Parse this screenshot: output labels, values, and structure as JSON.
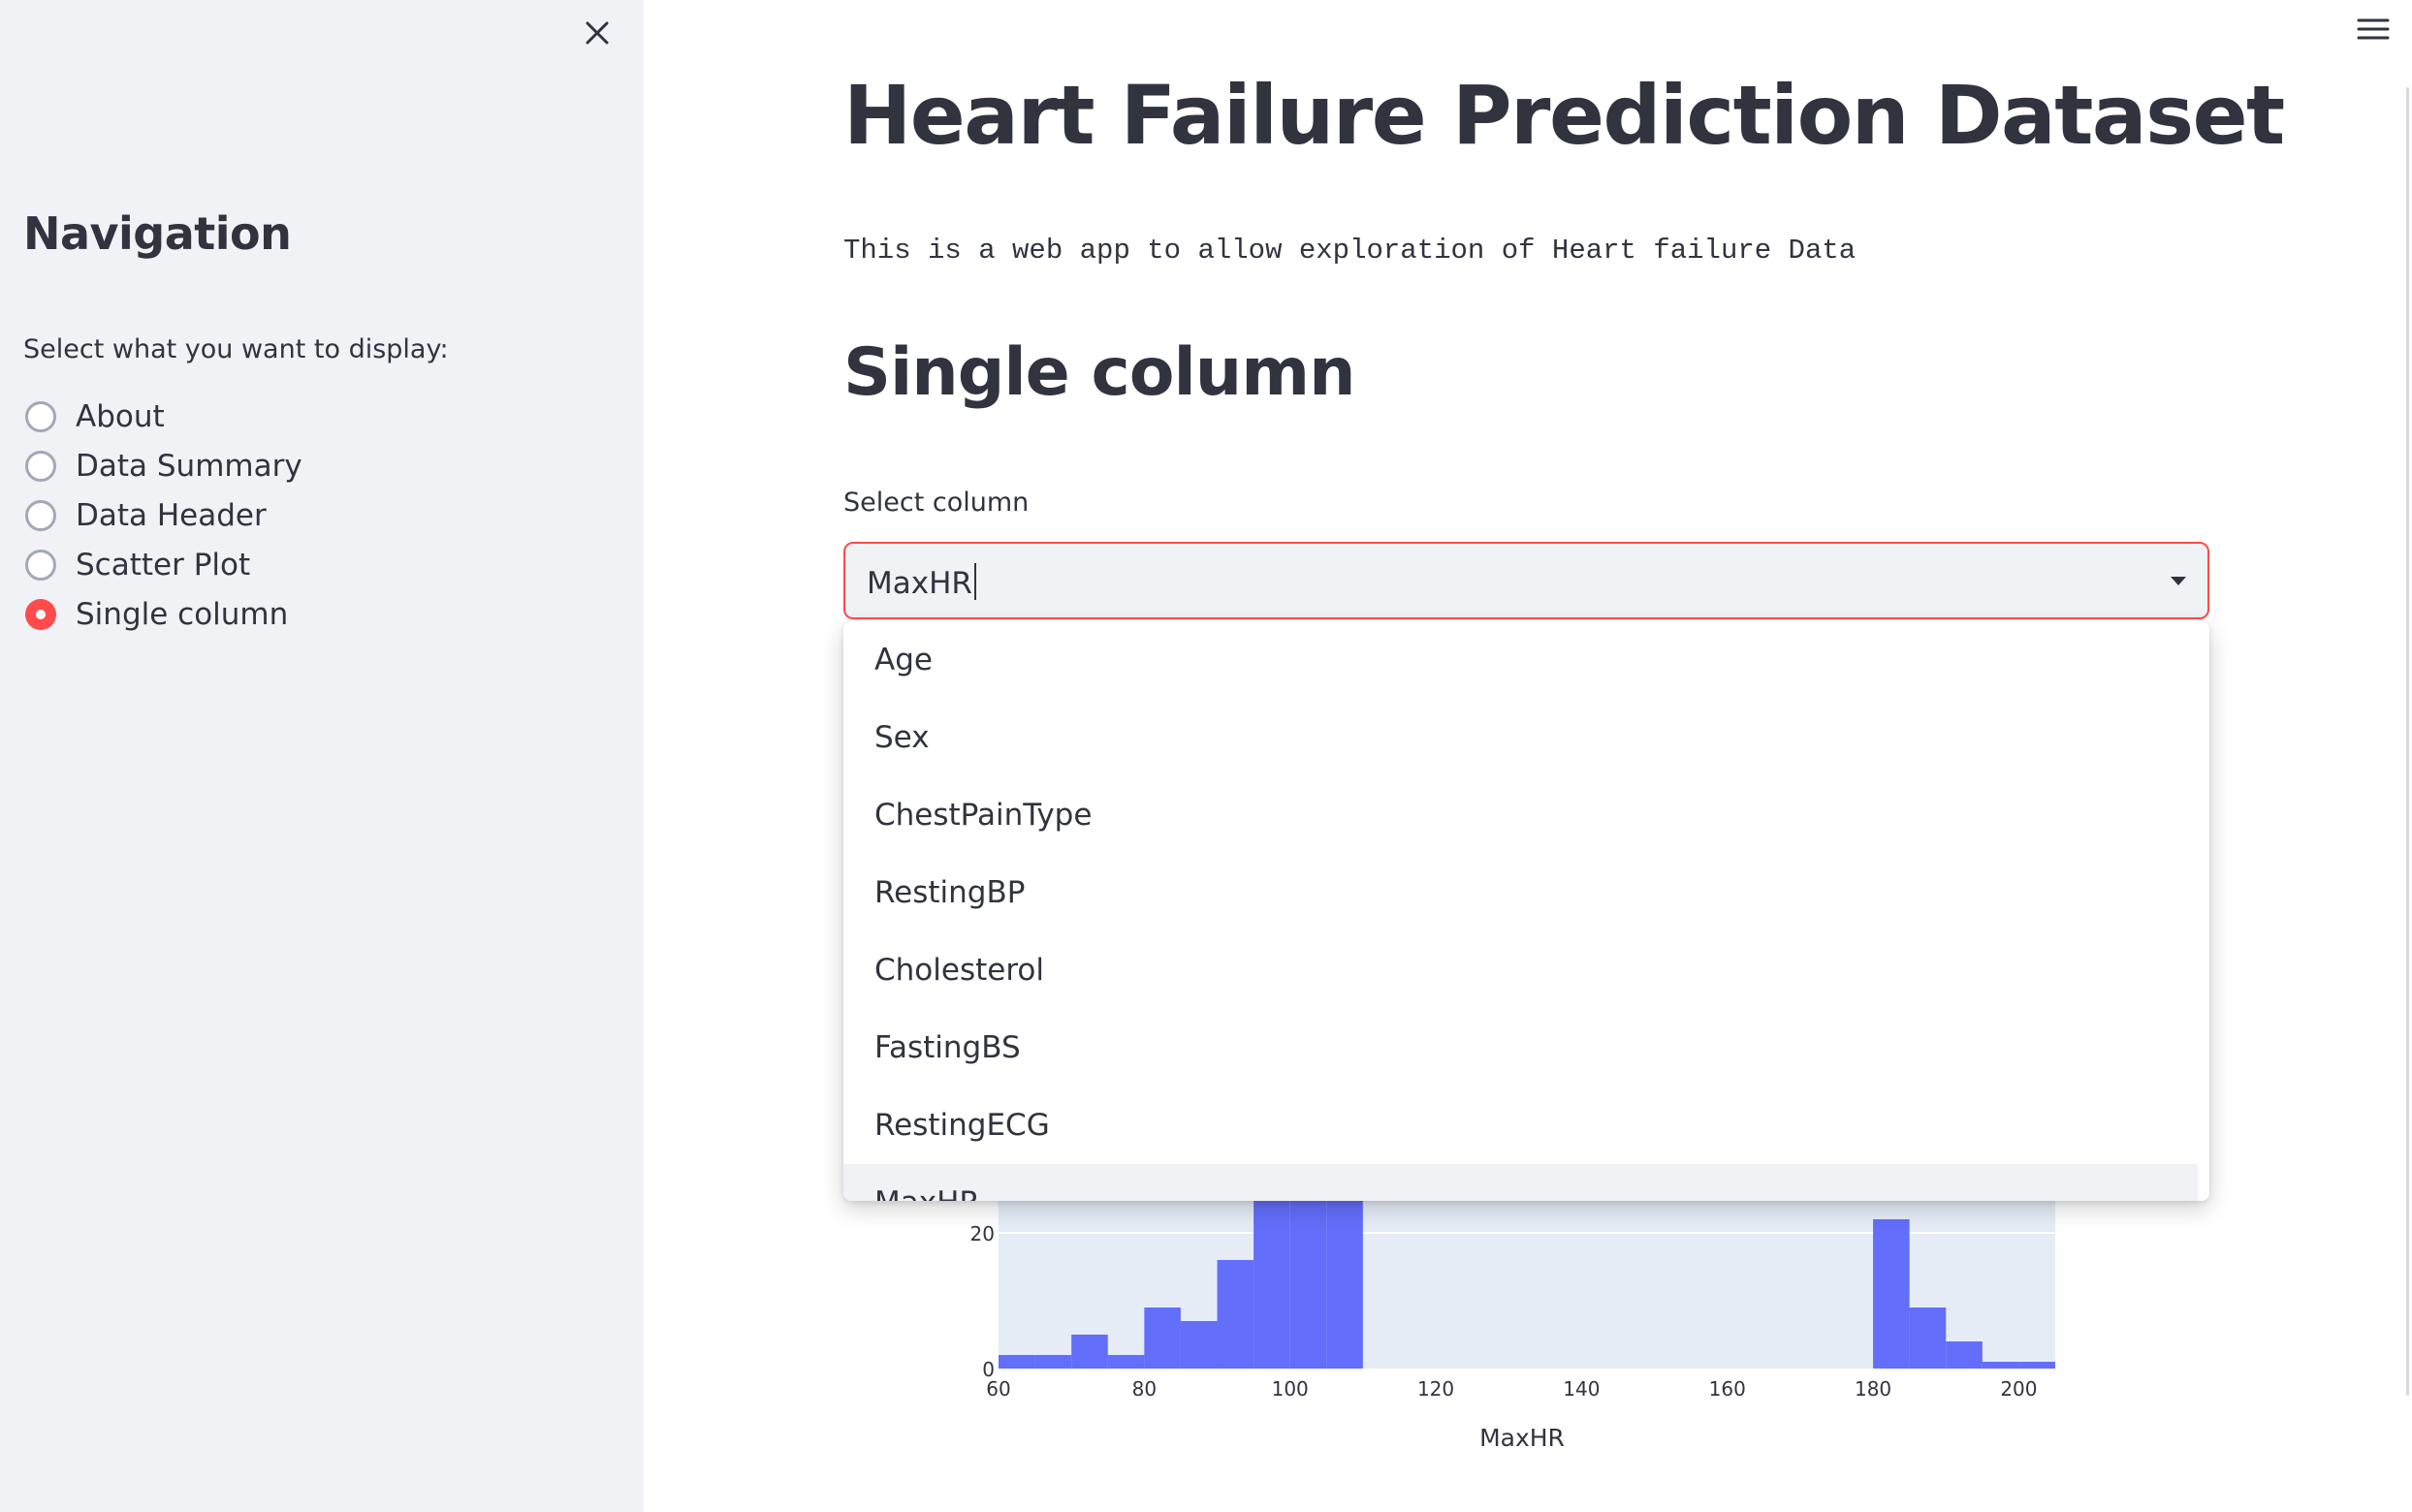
{
  "sidebar": {
    "title": "Navigation",
    "radio_label": "Select what you want to display:",
    "options": [
      {
        "label": "About",
        "checked": false
      },
      {
        "label": "Data Summary",
        "checked": false
      },
      {
        "label": "Data Header",
        "checked": false
      },
      {
        "label": "Scatter Plot",
        "checked": false
      },
      {
        "label": "Single column",
        "checked": true
      }
    ],
    "accent_color": "#ff4b4b"
  },
  "main": {
    "title": "Heart Failure Prediction Dataset",
    "intro": "This is a web app to allow exploration of Heart failure Data",
    "section_title": "Single column",
    "select": {
      "label": "Select column",
      "value": "MaxHR",
      "options": [
        "Age",
        "Sex",
        "ChestPainType",
        "RestingBP",
        "Cholesterol",
        "FastingBS",
        "RestingECG",
        "MaxHR"
      ],
      "highlighted": "MaxHR"
    }
  },
  "chart_data": {
    "type": "bar",
    "xlabel": "MaxHR",
    "ylabel": "",
    "x_ticks": [
      60,
      80,
      100,
      120,
      140,
      160,
      180,
      200
    ],
    "y_ticks_visible": [
      0,
      20
    ],
    "bin_width": 5,
    "bins_start": [
      60,
      65,
      70,
      75,
      80,
      85,
      90,
      95,
      100,
      105,
      180,
      185,
      190,
      195,
      200
    ],
    "values": [
      2,
      2,
      5,
      2,
      9,
      7,
      16,
      28,
      27,
      32,
      22,
      9,
      4,
      1,
      1
    ],
    "color": "#636efa",
    "plot_background": "#e5ecf6"
  }
}
